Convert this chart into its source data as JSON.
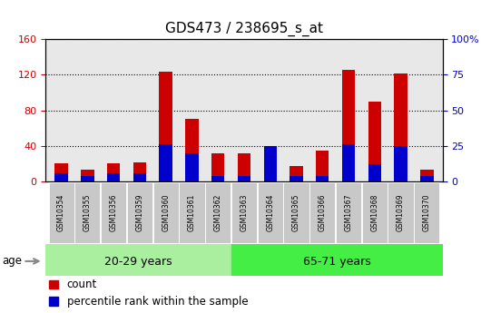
{
  "title": "GDS473 / 238695_s_at",
  "categories": [
    "GSM10354",
    "GSM10355",
    "GSM10356",
    "GSM10359",
    "GSM10360",
    "GSM10361",
    "GSM10362",
    "GSM10363",
    "GSM10364",
    "GSM10365",
    "GSM10366",
    "GSM10367",
    "GSM10368",
    "GSM10369",
    "GSM10370"
  ],
  "count_values": [
    20,
    13,
    20,
    22,
    123,
    70,
    32,
    32,
    40,
    17,
    35,
    125,
    90,
    121,
    13
  ],
  "percentile_values": [
    6,
    4,
    6,
    6,
    26,
    20,
    4,
    4,
    25,
    4,
    4,
    26,
    12,
    25,
    4
  ],
  "ylim_left": [
    0,
    160
  ],
  "ylim_right": [
    0,
    100
  ],
  "yticks_left": [
    0,
    40,
    80,
    120,
    160
  ],
  "yticks_right": [
    0,
    25,
    50,
    75,
    100
  ],
  "yticklabels_right": [
    "0",
    "25",
    "50",
    "75",
    "100%"
  ],
  "count_color": "#CC0000",
  "percentile_color": "#0000CC",
  "bar_width": 0.5,
  "group1_label": "20-29 years",
  "group2_label": "65-71 years",
  "group1_n": 7,
  "group1_color": "#AAEEA0",
  "group2_color": "#44EE44",
  "age_label": "age",
  "legend_count": "count",
  "legend_percentile": "percentile rank within the sample",
  "left_tick_color": "#CC0000",
  "right_tick_color": "#0000CC",
  "bg_plot": "#E8E8E8",
  "title_fontsize": 11,
  "tick_fontsize": 8,
  "group_fontsize": 9,
  "legend_fontsize": 8.5
}
